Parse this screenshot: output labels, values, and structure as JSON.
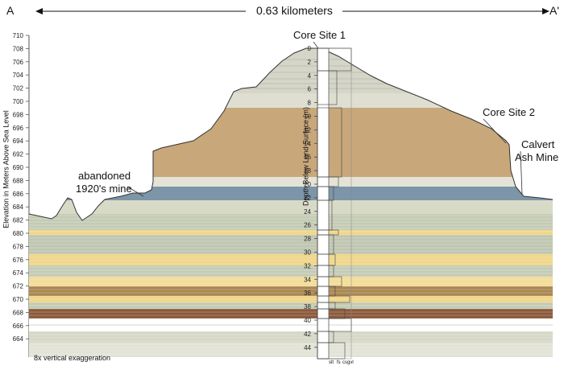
{
  "header": {
    "left_label": "A",
    "right_label": "A'",
    "distance": "0.63 kilometers"
  },
  "axes": {
    "left_title": "Elevation in Meters Above Sea Level",
    "center_title": "Depth Below Land Surface (m)",
    "elevation_ticks": [
      "710",
      "708",
      "706",
      "704",
      "702",
      "700",
      "698",
      "696",
      "694",
      "692",
      "690",
      "688",
      "686",
      "684",
      "682",
      "680",
      "678",
      "676",
      "674",
      "672",
      "670",
      "668",
      "666",
      "664"
    ],
    "depth_ticks": [
      "0",
      "2",
      "4",
      "6",
      "8",
      "10",
      "12",
      "14",
      "16",
      "18",
      "20",
      "22",
      "24",
      "26",
      "28",
      "30",
      "32",
      "34",
      "36",
      "38",
      "40",
      "42",
      "44"
    ],
    "grain_size_labels": [
      "slt",
      "fs",
      "cs",
      "gvl"
    ]
  },
  "annotations": {
    "core_site_1": "Core Site 1",
    "core_site_2": "Core Site 2",
    "calvert_line1": "Calvert",
    "calvert_line2": "Ash Mine",
    "mine_line1": "abandoned",
    "mine_line2": "1920's mine",
    "exaggeration": "8x vertical exaggeration"
  },
  "colors": {
    "tan": "#c8a77a",
    "blue_gray": "#7d95a8",
    "light_gray": "#d9dacb",
    "sage": "#bfc6b0",
    "yellow": "#f0d68a",
    "brown": "#a88752",
    "dark_brown": "#8b5a3c",
    "white_layer": "#ffffff"
  }
}
